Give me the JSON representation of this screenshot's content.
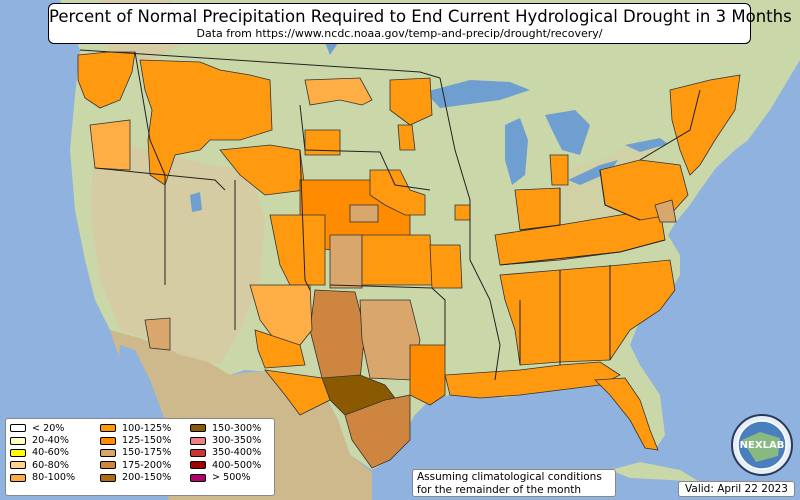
{
  "header": {
    "title": "Percent of Normal Precipitation Required to End Current Hydrological Drought in 3 Months",
    "subtitle": "Data from https://www.ncdc.noaa.gov/temp-and-precip/drought/recovery/"
  },
  "legend": [
    {
      "label": "< 20%",
      "color": "#ffffff"
    },
    {
      "label": "20-40%",
      "color": "#ffffbe"
    },
    {
      "label": "40-60%",
      "color": "#ffff00"
    },
    {
      "label": "60-80%",
      "color": "#ffd38c"
    },
    {
      "label": "80-100%",
      "color": "#ffaa44"
    },
    {
      "label": "100-125%",
      "color": "#ff9900"
    },
    {
      "label": "125-150%",
      "color": "#ff8c00"
    },
    {
      "label": "150-175%",
      "color": "#d9a66b"
    },
    {
      "label": "175-200%",
      "color": "#cd853f"
    },
    {
      "label": "200-150%",
      "color": "#b06c14"
    },
    {
      "label": "150-300%",
      "color": "#8b5a00"
    },
    {
      "label": "300-350%",
      "color": "#f08080"
    },
    {
      "label": "350-400%",
      "color": "#cd3333"
    },
    {
      "label": "400-500%",
      "color": "#a00000"
    },
    {
      "label": "> 500%",
      "color": "#b4006e"
    }
  ],
  "note": {
    "line1": "Assuming climatological conditions",
    "line2": "for the remainder of the month"
  },
  "valid": "Valid: April 22 2023",
  "logo": {
    "text": "NEXLAB"
  },
  "colors": {
    "ocean": "#8fb2de",
    "land": "#c7d5a8",
    "mountain": "#d8c9a3",
    "lake": "#6f9fd0"
  }
}
